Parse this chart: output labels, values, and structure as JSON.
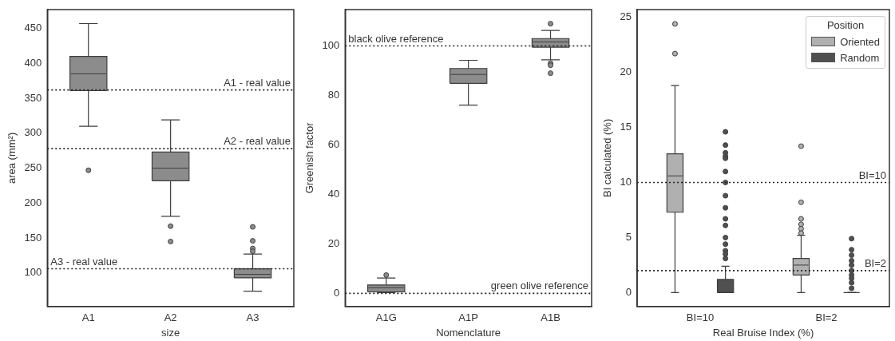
{
  "chart_data": [
    {
      "type": "box",
      "categories": [
        "A1",
        "A2",
        "A3"
      ],
      "xlabel": "size",
      "ylabel": "area (mm²)",
      "ylim": [
        52,
        477
      ],
      "yticks": [
        100,
        150,
        200,
        250,
        300,
        350,
        400,
        450
      ],
      "grid": false,
      "legend": false,
      "series": [
        {
          "color": "#8c8c8c",
          "boxes": [
            {
              "low": 310,
              "q1": 361,
              "median": 385,
              "q3": 410,
              "high": 457,
              "outliers": [
                247
              ]
            },
            {
              "low": 181,
              "q1": 232,
              "median": 250,
              "q3": 273,
              "high": 319,
              "outliers": [
                167,
                145
              ]
            },
            {
              "low": 74,
              "q1": 93,
              "median": 98,
              "q3": 106,
              "high": 127,
              "outliers": [
                166,
                146,
                135,
                131
              ]
            }
          ]
        }
      ],
      "ref_lines": [
        {
          "axis": "y",
          "value": 362,
          "label": "A1 - real value",
          "line_style": "dotted",
          "color": "#222222"
        },
        {
          "axis": "y",
          "value": 278,
          "label": "A2 - real value",
          "line_style": "dotted",
          "color": "#222222"
        },
        {
          "axis": "y",
          "value": 106,
          "label": "A3 - real value",
          "line_style": "dotted",
          "color": "#222222"
        }
      ]
    },
    {
      "type": "box",
      "categories": [
        "A1G",
        "A1P",
        "A1B"
      ],
      "xlabel": "Nomenclature",
      "ylabel": "Greenish factor",
      "ylim": [
        -5.3,
        114.7
      ],
      "yticks": [
        0,
        20,
        40,
        60,
        80,
        100
      ],
      "grid": false,
      "legend": false,
      "series": [
        {
          "color": "#8c8c8c",
          "boxes": [
            {
              "low": 0.3,
              "q1": 0.6,
              "median": 2.3,
              "q3": 3.4,
              "high": 6.2,
              "outliers": [
                7.4
              ]
            },
            {
              "low": 76.1,
              "q1": 84.9,
              "median": 88.5,
              "q3": 90.9,
              "high": 94.2
            },
            {
              "low": 94.4,
              "q1": 99.5,
              "median": 101.6,
              "q3": 103,
              "high": 106.3,
              "outliers": [
                109,
                93,
                92.2,
                89
              ]
            }
          ]
        }
      ],
      "ref_lines": [
        {
          "axis": "y",
          "value": 100,
          "label": "black olive reference",
          "line_style": "dotted",
          "color": "#222222"
        },
        {
          "axis": "y",
          "value": 0,
          "label": "green olive reference",
          "line_style": "dotted",
          "color": "#222222"
        }
      ]
    },
    {
      "type": "box",
      "categories": [
        "BI=10",
        "BI=2"
      ],
      "xlabel": "Real Bruise Index (%)",
      "ylabel": "BI calculated (%)",
      "ylim": [
        -1.26,
        25.7
      ],
      "yticks": [
        0,
        5,
        10,
        15,
        20,
        25
      ],
      "grid": false,
      "legend": "top right",
      "legend_title": "Position",
      "series": [
        {
          "name": "Oriented",
          "color": "#b0b0b0",
          "boxes": [
            {
              "low": 0,
              "q1": 7.3,
              "median": 10.6,
              "q3": 12.6,
              "high": 18.8,
              "outliers": [
                24.4,
                21.7
              ]
            },
            {
              "low": 0,
              "q1": 1.6,
              "median": 2.5,
              "q3": 3.1,
              "high": 5.2,
              "outliers": [
                13.3,
                8.2,
                6.7,
                6.2,
                5.8,
                5.4
              ]
            }
          ]
        },
        {
          "name": "Random",
          "color": "#505050",
          "boxes": [
            {
              "low": 0,
              "q1": 0,
              "median": 0,
              "q3": 1.2,
              "high": 2.4,
              "outliers": [
                14.6,
                13.4,
                12.7,
                12.4,
                12.2,
                11,
                10,
                8.8,
                7.7,
                6.7,
                6.1,
                5,
                4.4,
                3.8,
                3.5,
                3.1
              ]
            },
            {
              "low": 0,
              "q1": 0,
              "median": 0,
              "q3": 0,
              "high": 0,
              "outliers": [
                4.9,
                3.9,
                3.4,
                2.9,
                2.5,
                2,
                1.6,
                1.3,
                0.9,
                0.4
              ]
            }
          ]
        }
      ],
      "ref_lines": [
        {
          "axis": "y",
          "value": 10,
          "label": "BI=10",
          "line_style": "dotted",
          "color": "#222222"
        },
        {
          "axis": "y",
          "value": 2,
          "label": "BI=2",
          "line_style": "dotted",
          "color": "#222222"
        }
      ]
    }
  ]
}
